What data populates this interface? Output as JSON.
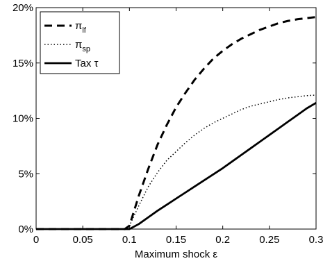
{
  "chart_data": {
    "type": "line",
    "xlabel": "Maximum shock ε",
    "ylabel": "",
    "xlim": [
      0,
      0.3
    ],
    "ylim": [
      0,
      20
    ],
    "x_ticks": [
      0,
      0.05,
      0.1,
      0.15,
      0.2,
      0.25,
      0.3
    ],
    "x_tick_labels": [
      "0",
      "0.05",
      "0.1",
      "0.15",
      "0.2",
      "0.25",
      "0.3"
    ],
    "y_ticks": [
      0,
      5,
      10,
      15,
      20
    ],
    "y_tick_labels": [
      "0%",
      "5%",
      "10%",
      "15%",
      "20%"
    ],
    "grid": false,
    "legend_position": "top-left",
    "series": [
      {
        "name": "π_lf",
        "legend_main": "π",
        "legend_sub": "lf",
        "style": "dashed",
        "x": [
          0,
          0.05,
          0.095,
          0.1,
          0.11,
          0.12,
          0.13,
          0.14,
          0.15,
          0.16,
          0.17,
          0.18,
          0.19,
          0.2,
          0.21,
          0.22,
          0.23,
          0.24,
          0.25,
          0.26,
          0.27,
          0.28,
          0.29,
          0.3
        ],
        "values": [
          0,
          0,
          0,
          0.3,
          3.0,
          5.4,
          7.6,
          9.4,
          11.0,
          12.3,
          13.5,
          14.5,
          15.4,
          16.1,
          16.7,
          17.2,
          17.6,
          18.0,
          18.3,
          18.6,
          18.8,
          18.95,
          19.05,
          19.15
        ]
      },
      {
        "name": "π_sp",
        "legend_main": "π",
        "legend_sub": "sp",
        "style": "dotted",
        "x": [
          0,
          0.05,
          0.095,
          0.1,
          0.11,
          0.12,
          0.13,
          0.14,
          0.15,
          0.16,
          0.17,
          0.18,
          0.19,
          0.2,
          0.21,
          0.22,
          0.23,
          0.24,
          0.25,
          0.26,
          0.27,
          0.28,
          0.29,
          0.3
        ],
        "values": [
          0,
          0,
          0,
          0.3,
          2.1,
          3.8,
          5.1,
          6.2,
          7.0,
          7.8,
          8.5,
          9.1,
          9.6,
          10.0,
          10.4,
          10.8,
          11.1,
          11.3,
          11.5,
          11.7,
          11.85,
          11.95,
          12.05,
          12.1
        ]
      },
      {
        "name": "Tax τ",
        "legend_main": "Tax τ",
        "legend_sub": "",
        "style": "solid",
        "x": [
          0,
          0.05,
          0.09,
          0.1,
          0.11,
          0.12,
          0.13,
          0.14,
          0.15,
          0.16,
          0.17,
          0.18,
          0.19,
          0.2,
          0.21,
          0.22,
          0.23,
          0.24,
          0.25,
          0.26,
          0.27,
          0.28,
          0.29,
          0.3
        ],
        "values": [
          0,
          0,
          0,
          0,
          0.45,
          1.05,
          1.65,
          2.2,
          2.75,
          3.3,
          3.85,
          4.4,
          4.95,
          5.5,
          6.1,
          6.7,
          7.3,
          7.9,
          8.5,
          9.1,
          9.7,
          10.3,
          10.9,
          11.4
        ]
      }
    ]
  }
}
